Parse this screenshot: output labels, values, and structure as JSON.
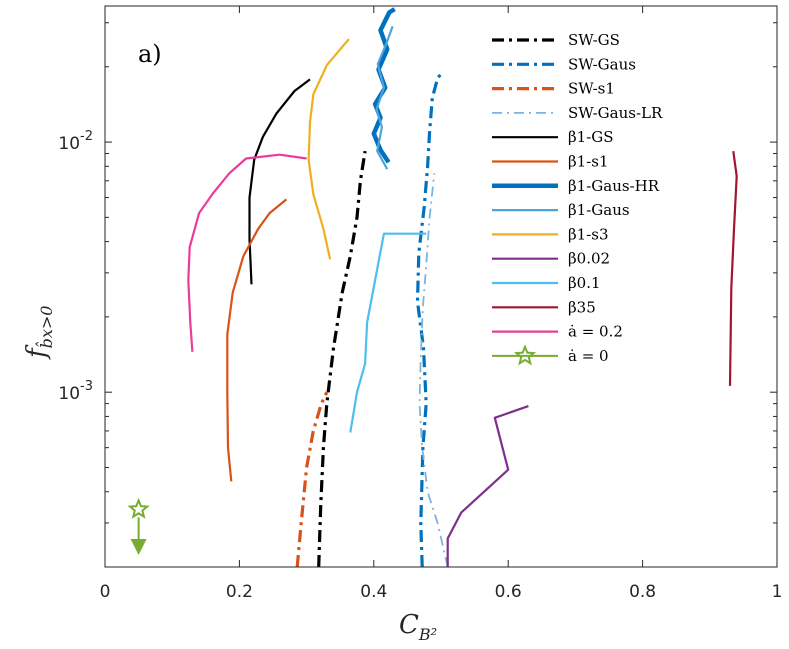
{
  "chart_data": {
    "type": "line",
    "panel_label": "a)",
    "xlabel": "C",
    "xlabel_sub": "B²",
    "ylabel": "f",
    "ylabel_sub": "b̂x>0",
    "xlim": [
      0,
      1
    ],
    "ylim_log": [
      0.0002,
      0.035
    ],
    "yscale": "log",
    "x_ticks": [
      0,
      0.2,
      0.4,
      0.6,
      0.8,
      1
    ],
    "x_tick_labels": [
      "0",
      "0.2",
      "0.4",
      "0.6",
      "0.8",
      "1"
    ],
    "y_ticks": [
      0.001,
      0.01
    ],
    "y_tick_labels": [
      {
        "base": "10",
        "exp": "-3"
      },
      {
        "base": "10",
        "exp": "-2"
      }
    ],
    "legend_position": "top-right",
    "series": [
      {
        "name": "SW-GS",
        "color": "#000000",
        "width": 3.2,
        "dash": "12,5,3,5",
        "points": [
          [
            0.318,
            0.0002
          ],
          [
            0.321,
            0.00035
          ],
          [
            0.325,
            0.0006
          ],
          [
            0.33,
            0.0009
          ],
          [
            0.34,
            0.0015
          ],
          [
            0.353,
            0.0025
          ],
          [
            0.365,
            0.0035
          ],
          [
            0.375,
            0.005
          ],
          [
            0.38,
            0.007
          ],
          [
            0.387,
            0.0092
          ]
        ]
      },
      {
        "name": "SW-Gaus",
        "color": "#0072BD",
        "width": 3.2,
        "dash": "12,5,3,5",
        "points": [
          [
            0.472,
            0.0002
          ],
          [
            0.47,
            0.0003
          ],
          [
            0.473,
            0.0006
          ],
          [
            0.478,
            0.0009
          ],
          [
            0.474,
            0.0015
          ],
          [
            0.465,
            0.0023
          ],
          [
            0.467,
            0.0036
          ],
          [
            0.475,
            0.0055
          ],
          [
            0.48,
            0.008
          ],
          [
            0.483,
            0.011
          ],
          [
            0.487,
            0.015
          ],
          [
            0.495,
            0.018
          ],
          [
            0.502,
            0.019
          ]
        ]
      },
      {
        "name": "SW-s1",
        "color": "#D95319",
        "width": 3.2,
        "dash": "12,5,3,5",
        "points": [
          [
            0.286,
            0.0002
          ],
          [
            0.292,
            0.0003
          ],
          [
            0.3,
            0.0005
          ],
          [
            0.31,
            0.0007
          ],
          [
            0.322,
            0.0009
          ],
          [
            0.33,
            0.001
          ]
        ]
      },
      {
        "name": "SW-Gaus-LR",
        "color": "#7FB2DC",
        "width": 1.8,
        "dash": "10,5,2,5",
        "points": [
          [
            0.51,
            0.0002
          ],
          [
            0.495,
            0.0003
          ],
          [
            0.48,
            0.0004
          ],
          [
            0.472,
            0.0006
          ],
          [
            0.468,
            0.0009
          ],
          [
            0.47,
            0.0014
          ],
          [
            0.473,
            0.0022
          ],
          [
            0.478,
            0.0032
          ],
          [
            0.483,
            0.005
          ],
          [
            0.49,
            0.0075
          ]
        ]
      },
      {
        "name": "β1-GS",
        "color": "#000000",
        "width": 2.2,
        "dash": "",
        "points": [
          [
            0.218,
            0.0027
          ],
          [
            0.215,
            0.0041
          ],
          [
            0.215,
            0.006
          ],
          [
            0.222,
            0.0085
          ],
          [
            0.235,
            0.0105
          ],
          [
            0.255,
            0.013
          ],
          [
            0.282,
            0.016
          ],
          [
            0.305,
            0.0178
          ]
        ]
      },
      {
        "name": "β1-s1",
        "color": "#D95319",
        "width": 2.2,
        "dash": "",
        "points": [
          [
            0.188,
            0.00044
          ],
          [
            0.183,
            0.0006
          ],
          [
            0.182,
            0.001
          ],
          [
            0.182,
            0.0017
          ],
          [
            0.19,
            0.0025
          ],
          [
            0.206,
            0.0035
          ],
          [
            0.228,
            0.0045
          ],
          [
            0.245,
            0.0052
          ],
          [
            0.27,
            0.0059
          ]
        ]
      },
      {
        "name": "β1-Gaus-HR",
        "color": "#0072BD",
        "width": 4.5,
        "dash": "",
        "points": [
          [
            0.422,
            0.0083
          ],
          [
            0.41,
            0.0093
          ],
          [
            0.4,
            0.0108
          ],
          [
            0.41,
            0.0125
          ],
          [
            0.402,
            0.0142
          ],
          [
            0.417,
            0.0165
          ],
          [
            0.407,
            0.0195
          ],
          [
            0.42,
            0.0235
          ],
          [
            0.41,
            0.028
          ],
          [
            0.423,
            0.033
          ],
          [
            0.431,
            0.034
          ]
        ]
      },
      {
        "name": "β1-Gaus",
        "color": "#4DA3DB",
        "width": 2.2,
        "dash": "",
        "points": [
          [
            0.42,
            0.0078
          ],
          [
            0.405,
            0.0092
          ],
          [
            0.412,
            0.0115
          ],
          [
            0.404,
            0.0135
          ],
          [
            0.415,
            0.0165
          ],
          [
            0.406,
            0.0205
          ],
          [
            0.418,
            0.0245
          ],
          [
            0.428,
            0.029
          ]
        ]
      },
      {
        "name": "β1-s3",
        "color": "#EDB120",
        "width": 2.2,
        "dash": "",
        "points": [
          [
            0.335,
            0.0034
          ],
          [
            0.325,
            0.0045
          ],
          [
            0.31,
            0.0062
          ],
          [
            0.303,
            0.0085
          ],
          [
            0.305,
            0.012
          ],
          [
            0.31,
            0.0155
          ],
          [
            0.33,
            0.0203
          ],
          [
            0.363,
            0.0258
          ]
        ]
      },
      {
        "name": "β0.02",
        "color": "#7E2F8E",
        "width": 2.2,
        "dash": "",
        "points": [
          [
            0.51,
            0.0002
          ],
          [
            0.51,
            0.00026
          ],
          [
            0.53,
            0.00033
          ],
          [
            0.6,
            0.00049
          ],
          [
            0.58,
            0.00079
          ],
          [
            0.63,
            0.00088
          ]
        ]
      },
      {
        "name": "β0.1",
        "color": "#4DBEEE",
        "width": 2.2,
        "dash": "",
        "points": [
          [
            0.365,
            0.00069
          ],
          [
            0.375,
            0.001
          ],
          [
            0.387,
            0.0013
          ],
          [
            0.39,
            0.0019
          ],
          [
            0.415,
            0.0043
          ],
          [
            0.478,
            0.0043
          ]
        ]
      },
      {
        "name": "β35",
        "color": "#A2142F",
        "width": 2.2,
        "dash": "",
        "points": [
          [
            0.93,
            0.00106
          ],
          [
            0.932,
            0.0026
          ],
          [
            0.936,
            0.0045
          ],
          [
            0.94,
            0.0073
          ],
          [
            0.935,
            0.0092
          ]
        ]
      },
      {
        "name": "ȧ = 0.2",
        "color": "#EB3C9A",
        "width": 2.2,
        "dash": "",
        "points": [
          [
            0.13,
            0.00145
          ],
          [
            0.127,
            0.0019
          ],
          [
            0.124,
            0.0028
          ],
          [
            0.126,
            0.0038
          ],
          [
            0.14,
            0.0052
          ],
          [
            0.16,
            0.0062
          ],
          [
            0.185,
            0.0075
          ],
          [
            0.21,
            0.0086
          ],
          [
            0.26,
            0.0089
          ],
          [
            0.3,
            0.0086
          ]
        ]
      },
      {
        "name": "ȧ = 0",
        "color": "#77AC30",
        "width": 2.0,
        "dash": "",
        "points": [
          [
            0.05,
            0.00034
          ]
        ],
        "marker": "star",
        "arrow": "down"
      }
    ]
  }
}
